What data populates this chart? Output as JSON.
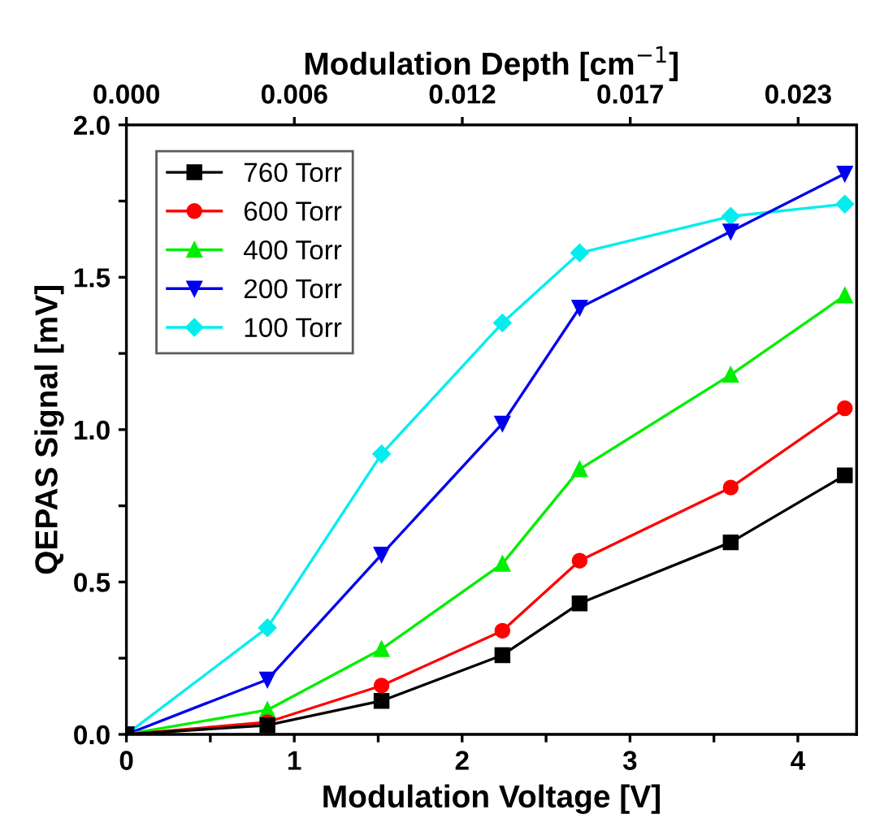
{
  "chart_data": {
    "type": "line",
    "xlabel": "Modulation Voltage [V]",
    "ylabel": "QEPAS Signal [mV]",
    "x2label": "Modulation Depth [cm$^{−1}$]",
    "x": [
      0,
      0.84,
      1.52,
      2.24,
      2.7,
      3.6,
      4.28
    ],
    "series": [
      {
        "name": "760 Torr",
        "color": "#000000",
        "marker": "square",
        "values": [
          0,
          0.03,
          0.11,
          0.26,
          0.43,
          0.63,
          0.85
        ]
      },
      {
        "name": "600 Torr",
        "color": "#ff0000",
        "marker": "circle",
        "values": [
          0,
          0.04,
          0.16,
          0.34,
          0.57,
          0.81,
          1.07
        ]
      },
      {
        "name": "400 Torr",
        "color": "#00ee00",
        "marker": "triangle",
        "values": [
          0,
          0.08,
          0.28,
          0.56,
          0.87,
          1.18,
          1.44
        ]
      },
      {
        "name": "200 Torr",
        "color": "#0000ee",
        "marker": "triangle_down",
        "values": [
          0,
          0.18,
          0.59,
          1.02,
          1.4,
          1.65,
          1.84
        ]
      },
      {
        "name": "100 Torr",
        "color": "#00eeee",
        "marker": "diamond",
        "values": [
          0,
          0.35,
          0.92,
          1.35,
          1.58,
          1.7,
          1.74
        ]
      }
    ],
    "xlim": [
      0,
      4.35
    ],
    "xticks": [
      0,
      {
        "value": 0.5,
        "label": null
      },
      1,
      {
        "value": 1.5,
        "label": null
      },
      2,
      {
        "value": 2.5,
        "label": null
      },
      3,
      {
        "value": 3.5,
        "label": null
      },
      4
    ],
    "ylim": [
      0,
      2.0
    ],
    "yticks": [
      {
        "value": 0,
        "label": "0.0"
      },
      {
        "value": 0.25,
        "label": null
      },
      {
        "value": 0.5,
        "label": "0.5"
      },
      {
        "value": 0.75,
        "label": null
      },
      {
        "value": 1.0,
        "label": "1.0"
      },
      {
        "value": 1.25,
        "label": null
      },
      {
        "value": 1.5,
        "label": "1.5"
      },
      {
        "value": 1.75,
        "label": null
      },
      {
        "value": 2.0,
        "label": "2.0"
      }
    ],
    "x2lim": [
      0,
      0.025
    ],
    "x2ticks": [
      {
        "value": 0,
        "label": "0.000"
      },
      {
        "value": 0.00575,
        "label": "0.006"
      },
      {
        "value": 0.0115,
        "label": "0.012"
      },
      {
        "value": 0.01725,
        "label": "0.017"
      },
      {
        "value": 0.023,
        "label": "0.023"
      }
    ],
    "legend": "top left",
    "grid": false,
    "line_style": "solid"
  }
}
